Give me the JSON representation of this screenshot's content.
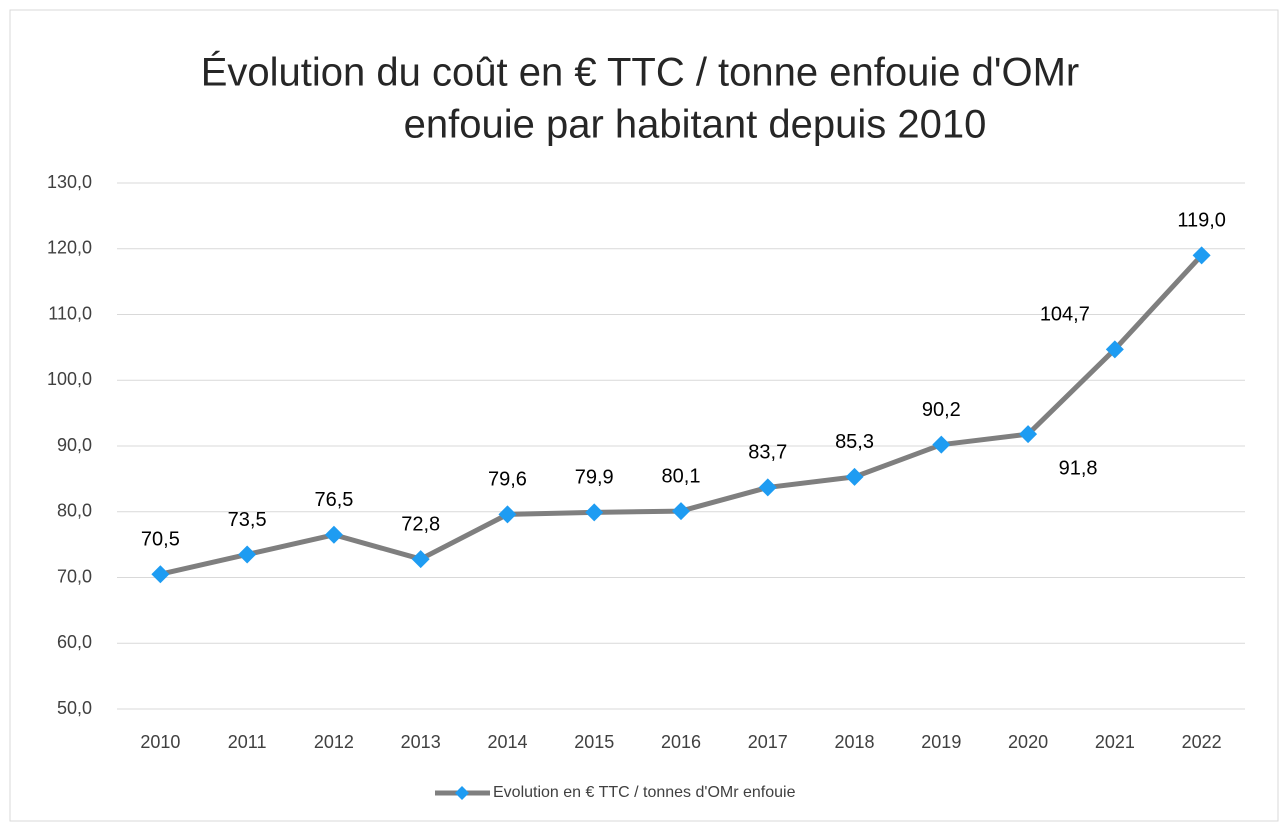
{
  "chart_data": {
    "type": "line",
    "title": [
      "Évolution du coût en € TTC / tonne enfouie d'OMr",
      "enfouie par habitant depuis 2010"
    ],
    "categories": [
      "2010",
      "2011",
      "2012",
      "2013",
      "2014",
      "2015",
      "2016",
      "2017",
      "2018",
      "2019",
      "2020",
      "2021",
      "2022"
    ],
    "series": [
      {
        "name": "Evolution en € TTC / tonnes d'OMr enfouie",
        "color": "#7f7f7f",
        "marker_color": "#1e9cf2",
        "values": [
          70.5,
          73.5,
          76.5,
          72.8,
          79.6,
          79.9,
          80.1,
          83.7,
          85.3,
          90.2,
          91.8,
          104.7,
          119.0
        ],
        "value_labels": [
          "70,5",
          "73,5",
          "76,5",
          "72,8",
          "79,6",
          "79,9",
          "80,1",
          "83,7",
          "85,3",
          "90,2",
          "91,8",
          "104,7",
          "119,0"
        ]
      }
    ],
    "ylim": [
      50,
      130
    ],
    "yticks": [
      {
        "value": 50,
        "label": "50,0"
      },
      {
        "value": 60,
        "label": "60,0"
      },
      {
        "value": 70,
        "label": "70,0"
      },
      {
        "value": 80,
        "label": "80,0"
      },
      {
        "value": 90,
        "label": "90,0"
      },
      {
        "value": 100,
        "label": "100,0"
      },
      {
        "value": 110,
        "label": "110,0"
      },
      {
        "value": 120,
        "label": "120,0"
      },
      {
        "value": 130,
        "label": "130,0"
      }
    ],
    "grid": true,
    "legend": "bottom"
  }
}
